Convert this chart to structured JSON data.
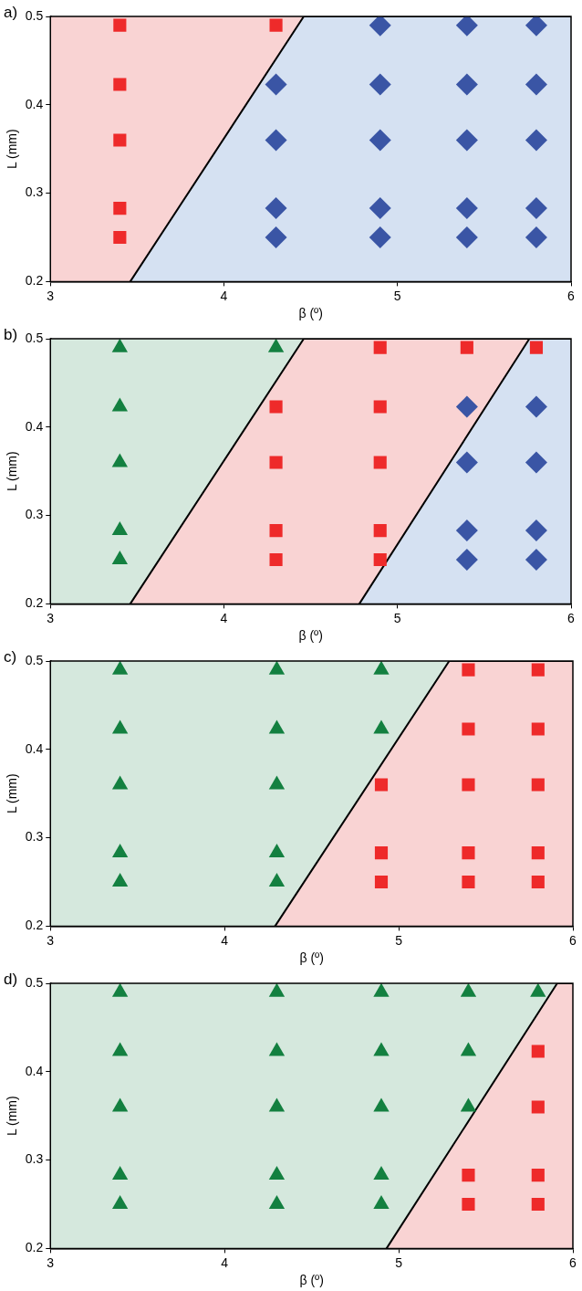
{
  "chart_data": [
    {
      "type": "scatter",
      "title": "a)",
      "xlabel": "β (º)",
      "ylabel": "L (mm)",
      "xlim": [
        3,
        6
      ],
      "xticks": [
        3,
        4,
        5,
        6
      ],
      "ylim": [
        0.2,
        0.5
      ],
      "yticks": [
        0.2,
        0.3,
        0.4,
        0.5
      ],
      "grid": false,
      "legend": false,
      "series": [
        {
          "type": "area",
          "color": "#f9d3d3",
          "x": [
            3,
            4.46
          ],
          "values": [
            0.5,
            0.5
          ]
        },
        {
          "type": "area",
          "color": "#d5e1f2",
          "line_style": "solid",
          "x": [
            3.46,
            4.46,
            6
          ],
          "values": [
            0.2,
            0.5,
            0.5
          ]
        },
        {
          "type": "scatter",
          "marker": "square",
          "color": "#ee2a2a",
          "x": [
            3.4,
            3.4,
            3.4,
            3.4,
            3.4,
            4.3
          ],
          "values": [
            0.25,
            0.283,
            0.36,
            0.423,
            0.49,
            0.49
          ]
        },
        {
          "type": "scatter",
          "marker": "diamond",
          "color": "#3a55a5",
          "x": [
            4.3,
            4.3,
            4.3,
            4.3,
            4.9,
            4.9,
            4.9,
            4.9,
            4.9,
            5.4,
            5.4,
            5.4,
            5.4,
            5.4,
            5.8,
            5.8,
            5.8,
            5.8,
            5.8
          ],
          "values": [
            0.25,
            0.283,
            0.36,
            0.423,
            0.25,
            0.283,
            0.36,
            0.423,
            0.49,
            0.25,
            0.283,
            0.36,
            0.423,
            0.49,
            0.25,
            0.283,
            0.36,
            0.423,
            0.49
          ]
        }
      ]
    },
    {
      "type": "scatter",
      "title": "b)",
      "xlabel": "β (º)",
      "ylabel": "L (mm)",
      "xlim": [
        3,
        6
      ],
      "xticks": [
        3,
        4,
        5,
        6
      ],
      "ylim": [
        0.2,
        0.5
      ],
      "yticks": [
        0.2,
        0.3,
        0.4,
        0.5
      ],
      "grid": false,
      "legend": false,
      "series": [
        {
          "type": "area",
          "color": "#f9d3d3",
          "line_style": "solid",
          "x": [
            3.46,
            4.46,
            6
          ],
          "values": [
            0.2,
            0.5,
            0.5
          ]
        },
        {
          "type": "area",
          "color": "#d5e1f2",
          "line_style": "solid",
          "x": [
            4.78,
            5.76,
            6
          ],
          "values": [
            0.2,
            0.5,
            0.5
          ]
        },
        {
          "type": "scatter",
          "marker": "triangle",
          "color": "#138040",
          "x": [
            3.4,
            3.4,
            3.4,
            3.4,
            3.4,
            4.3
          ],
          "values": [
            0.25,
            0.283,
            0.36,
            0.423,
            0.49,
            0.49
          ]
        },
        {
          "type": "scatter",
          "marker": "square",
          "color": "#ee2a2a",
          "x": [
            4.3,
            4.3,
            4.3,
            4.3,
            4.9,
            4.9,
            4.9,
            4.9,
            4.9,
            5.4,
            5.8
          ],
          "values": [
            0.25,
            0.283,
            0.36,
            0.423,
            0.25,
            0.283,
            0.36,
            0.423,
            0.49,
            0.49,
            0.49
          ]
        },
        {
          "type": "scatter",
          "marker": "diamond",
          "color": "#3a55a5",
          "x": [
            5.4,
            5.4,
            5.4,
            5.4,
            5.8,
            5.8,
            5.8,
            5.8
          ],
          "values": [
            0.25,
            0.283,
            0.36,
            0.423,
            0.25,
            0.283,
            0.36,
            0.423
          ]
        }
      ]
    },
    {
      "type": "scatter",
      "title": "c)",
      "xlabel": "β (º)",
      "ylabel": "L (mm)",
      "xlim": [
        3,
        6
      ],
      "xticks": [
        3,
        4,
        5,
        6
      ],
      "ylim": [
        0.2,
        0.5
      ],
      "yticks": [
        0.2,
        0.3,
        0.4,
        0.5
      ],
      "grid": false,
      "legend": false,
      "series": [
        {
          "type": "area",
          "color": "#f9d3d3",
          "line_style": "solid",
          "x": [
            4.29,
            5.29,
            6
          ],
          "values": [
            0.2,
            0.5,
            0.5
          ]
        },
        {
          "type": "scatter",
          "marker": "triangle",
          "color": "#138040",
          "x": [
            3.4,
            3.4,
            3.4,
            3.4,
            3.4,
            4.3,
            4.3,
            4.3,
            4.3,
            4.3,
            4.9,
            4.9
          ],
          "values": [
            0.25,
            0.283,
            0.36,
            0.423,
            0.49,
            0.25,
            0.283,
            0.36,
            0.423,
            0.49,
            0.423,
            0.49
          ]
        },
        {
          "type": "scatter",
          "marker": "square",
          "color": "#ee2a2a",
          "x": [
            4.9,
            4.9,
            4.9,
            5.4,
            5.4,
            5.4,
            5.4,
            5.4,
            5.8,
            5.8,
            5.8,
            5.8,
            5.8
          ],
          "values": [
            0.25,
            0.283,
            0.36,
            0.25,
            0.283,
            0.36,
            0.423,
            0.49,
            0.25,
            0.283,
            0.36,
            0.423,
            0.49
          ]
        }
      ]
    },
    {
      "type": "scatter",
      "title": "d)",
      "xlabel": "β (º)",
      "ylabel": "L (mm)",
      "xlim": [
        3,
        6
      ],
      "xticks": [
        3,
        4,
        5,
        6
      ],
      "ylim": [
        0.2,
        0.5
      ],
      "yticks": [
        0.2,
        0.3,
        0.4,
        0.5
      ],
      "grid": false,
      "legend": false,
      "series": [
        {
          "type": "area",
          "color": "#f9d3d3",
          "line_style": "solid",
          "x": [
            4.93,
            5.91,
            6
          ],
          "values": [
            0.2,
            0.5,
            0.5
          ]
        },
        {
          "type": "scatter",
          "marker": "triangle",
          "color": "#138040",
          "x": [
            3.4,
            3.4,
            3.4,
            3.4,
            3.4,
            4.3,
            4.3,
            4.3,
            4.3,
            4.3,
            4.9,
            4.9,
            4.9,
            4.9,
            4.9,
            5.4,
            5.4,
            5.4,
            5.8
          ],
          "values": [
            0.25,
            0.283,
            0.36,
            0.423,
            0.49,
            0.25,
            0.283,
            0.36,
            0.423,
            0.49,
            0.25,
            0.283,
            0.36,
            0.423,
            0.49,
            0.36,
            0.423,
            0.49,
            0.49
          ]
        },
        {
          "type": "scatter",
          "marker": "square",
          "color": "#ee2a2a",
          "x": [
            5.4,
            5.4,
            5.8,
            5.8,
            5.8,
            5.8
          ],
          "values": [
            0.25,
            0.283,
            0.25,
            0.283,
            0.36,
            0.423
          ]
        }
      ]
    }
  ]
}
